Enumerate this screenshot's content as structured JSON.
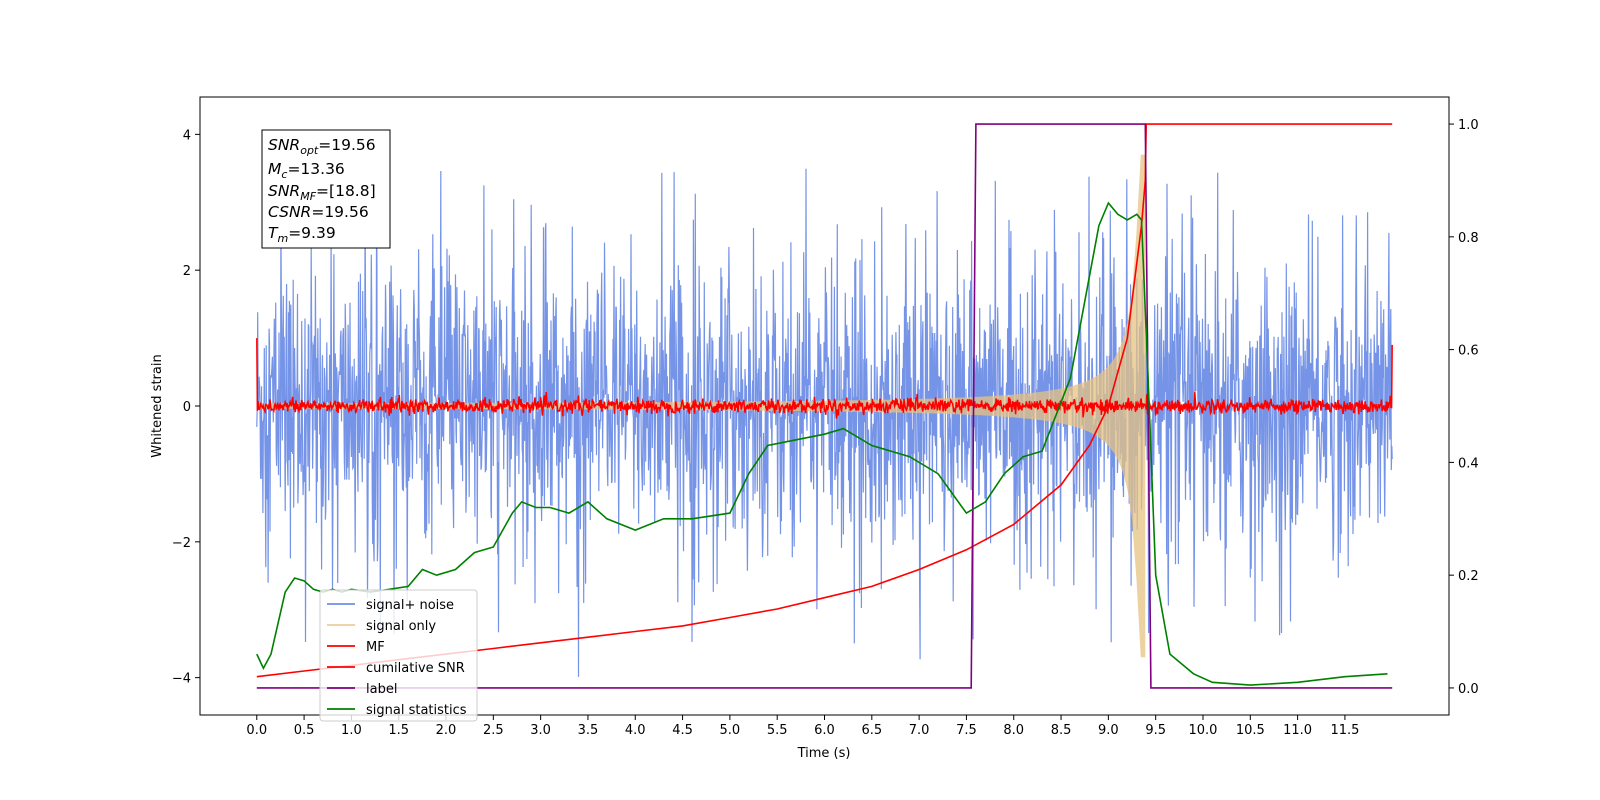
{
  "chart_data": {
    "type": "line",
    "xlabel": "Time (s)",
    "ylabel": "Whitened strain",
    "xlim": [
      -0.6,
      12.6
    ],
    "ylim": [
      -4.55,
      4.55
    ],
    "y2lim": [
      -0.048,
      1.048
    ],
    "grid": false,
    "legend_position": "lower-left",
    "x_ticks": [
      "0.0",
      "0.5",
      "1.0",
      "1.5",
      "2.0",
      "2.5",
      "3.0",
      "3.5",
      "4.0",
      "4.5",
      "5.0",
      "5.5",
      "6.0",
      "6.5",
      "7.0",
      "7.5",
      "8.0",
      "8.5",
      "9.0",
      "9.5",
      "10.0",
      "10.5",
      "11.0",
      "11.5"
    ],
    "y_ticks": [
      "4",
      "2",
      "0",
      "−2",
      "−4"
    ],
    "y2_ticks": [
      "1.0",
      "0.8",
      "0.6",
      "0.4",
      "0.2",
      "0.0"
    ],
    "annotation": {
      "snr_opt": {
        "sym": "SNR",
        "sub": "opt",
        "value": "=19.56"
      },
      "mc": {
        "sym": "M",
        "sub": "c",
        "value": "=13.36"
      },
      "snr_mf": {
        "sym": "SNR",
        "sub": "MF",
        "value": "=[18.8]"
      },
      "csnr": {
        "sym": "CSNR",
        "value": "=19.56"
      },
      "tm": {
        "sym": "T",
        "sub": "m",
        "value": "=9.39"
      }
    },
    "series": [
      {
        "name": "signal+ noise",
        "axis": "left",
        "color": "#6f8ee6",
        "description_type": "noise",
        "x_range": [
          0.0,
          12.0
        ],
        "typical_amplitude": 1.6,
        "peak_max": 4.15,
        "peak_min": -4.15
      },
      {
        "name": "signal only",
        "axis": "left",
        "color": "#e5c281",
        "description_type": "chirp",
        "x_range": [
          0.0,
          9.39
        ],
        "amplitude_at_start": 0.02,
        "peak_amplitude": 3.7,
        "merger_time": 9.39
      },
      {
        "name": "MF",
        "axis": "left",
        "color": "#ff0000",
        "description_type": "noise",
        "x_range": [
          0.0,
          12.0
        ],
        "baseline": 0.0,
        "amplitude": 0.12,
        "start_value": 1.0,
        "end_value": 0.9
      },
      {
        "name": "cumilative SNR",
        "axis": "right",
        "color": "#ff0000",
        "x": [
          0.0,
          0.5,
          1.0,
          1.5,
          2.0,
          2.5,
          3.0,
          3.5,
          4.0,
          4.5,
          5.0,
          5.5,
          6.0,
          6.5,
          7.0,
          7.5,
          8.0,
          8.5,
          8.8,
          9.0,
          9.2,
          9.35,
          9.39,
          9.4,
          10.0,
          11.0,
          12.0
        ],
        "y": [
          0.02,
          0.03,
          0.04,
          0.05,
          0.06,
          0.07,
          0.08,
          0.09,
          0.1,
          0.11,
          0.125,
          0.14,
          0.16,
          0.18,
          0.21,
          0.245,
          0.29,
          0.36,
          0.43,
          0.5,
          0.62,
          0.82,
          0.9,
          1.0,
          1.0,
          1.0,
          1.0
        ]
      },
      {
        "name": "label",
        "axis": "right",
        "color": "#800080",
        "x": [
          0.0,
          7.55,
          7.6,
          9.35,
          9.39,
          9.45,
          12.0
        ],
        "y": [
          0.0,
          0.0,
          1.0,
          1.0,
          1.0,
          0.0,
          0.0
        ]
      },
      {
        "name": "signal statistics",
        "axis": "right",
        "color": "#008000",
        "x": [
          0.0,
          0.07,
          0.15,
          0.3,
          0.4,
          0.5,
          0.6,
          0.7,
          0.8,
          0.9,
          1.0,
          1.2,
          1.4,
          1.6,
          1.75,
          1.9,
          2.1,
          2.3,
          2.5,
          2.7,
          2.8,
          2.95,
          3.1,
          3.3,
          3.5,
          3.7,
          4.0,
          4.3,
          4.6,
          5.0,
          5.2,
          5.4,
          5.7,
          6.0,
          6.2,
          6.5,
          6.9,
          7.2,
          7.5,
          7.7,
          7.9,
          8.1,
          8.3,
          8.6,
          8.9,
          9.0,
          9.1,
          9.2,
          9.3,
          9.35,
          9.42,
          9.5,
          9.65,
          9.9,
          10.1,
          10.5,
          11.0,
          11.5,
          11.95
        ],
        "y": [
          0.06,
          0.035,
          0.06,
          0.17,
          0.195,
          0.19,
          0.175,
          0.17,
          0.175,
          0.17,
          0.175,
          0.17,
          0.175,
          0.18,
          0.21,
          0.2,
          0.21,
          0.24,
          0.25,
          0.31,
          0.33,
          0.32,
          0.32,
          0.31,
          0.33,
          0.3,
          0.28,
          0.3,
          0.3,
          0.31,
          0.38,
          0.43,
          0.44,
          0.45,
          0.46,
          0.43,
          0.41,
          0.38,
          0.31,
          0.33,
          0.38,
          0.41,
          0.42,
          0.55,
          0.82,
          0.86,
          0.84,
          0.83,
          0.84,
          0.83,
          0.55,
          0.2,
          0.06,
          0.025,
          0.01,
          0.005,
          0.01,
          0.02,
          0.025
        ]
      }
    ]
  }
}
